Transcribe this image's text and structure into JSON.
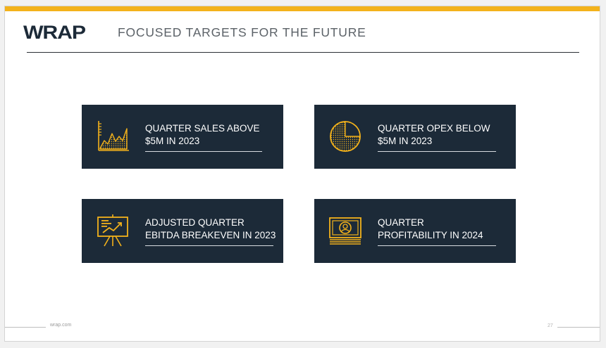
{
  "header": {
    "logo_text": "WRAP",
    "title": "FOCUSED TARGETS FOR THE FUTURE"
  },
  "cards": [
    {
      "icon": "area-chart-icon",
      "text": "QUARTER SALES ABOVE\n$5M IN 2023"
    },
    {
      "icon": "pie-chart-icon",
      "text": "QUARTER OPEX BELOW\n$5M IN 2023"
    },
    {
      "icon": "presentation-board-icon",
      "text": "ADJUSTED QUARTER\nEBITDA BREAKEVEN IN 2023"
    },
    {
      "icon": "banknote-icon",
      "text": "QUARTER\nPROFITABILITY IN 2024"
    }
  ],
  "footer": {
    "website": "wrap.com",
    "page_number": "27"
  },
  "colors": {
    "accent": "#f3b21b",
    "card_background": "#1c2a38",
    "icon_gold": "#f3b21b"
  }
}
